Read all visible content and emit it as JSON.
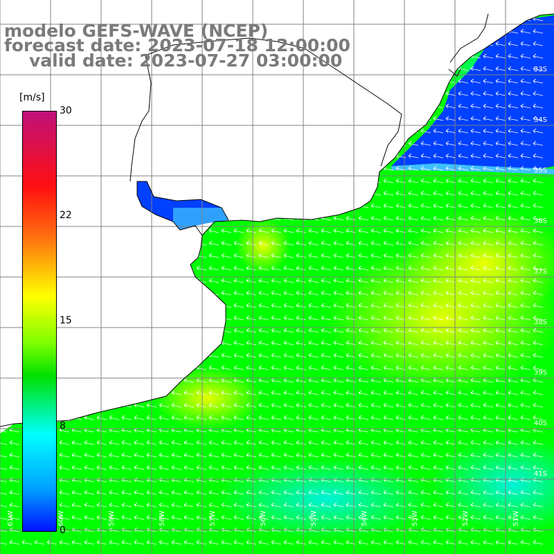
{
  "title": {
    "line1": "modelo GEFS-WAVE (NCEP)",
    "line2": "forecast date: 2023-07-18 12:00:00",
    "line3": "valid date: 2023-07-27 03:00:00"
  },
  "colorbar": {
    "unit": "[m/s]",
    "ticks": [
      "30",
      "22",
      "15",
      "8",
      "0"
    ],
    "colors": [
      "#c0107a",
      "#ff1010",
      "#ff7010",
      "#ffff00",
      "#80ff00",
      "#00e000",
      "#00ffff",
      "#00a0ff",
      "#0010ff"
    ]
  },
  "lat_labels": [
    "33S",
    "34S",
    "35S",
    "36S",
    "37S",
    "38S",
    "39S",
    "40S",
    "41S"
  ],
  "lon_labels": [
    "61W",
    "60W",
    "59W",
    "58W",
    "57W",
    "56W",
    "55W",
    "54W",
    "53W",
    "52W",
    "51W"
  ],
  "map_colors": {
    "land": "#ffffff",
    "coast": "#000000",
    "grid": "#808080",
    "arrows": "#ffffff",
    "wind_green": "#00ff00",
    "wind_yellow": "#ffff00",
    "wind_cyan": "#00ffff",
    "wind_blue": "#0030ff"
  },
  "wind_direction": "from the east-southeast (arrows pointing west-northwest)"
}
